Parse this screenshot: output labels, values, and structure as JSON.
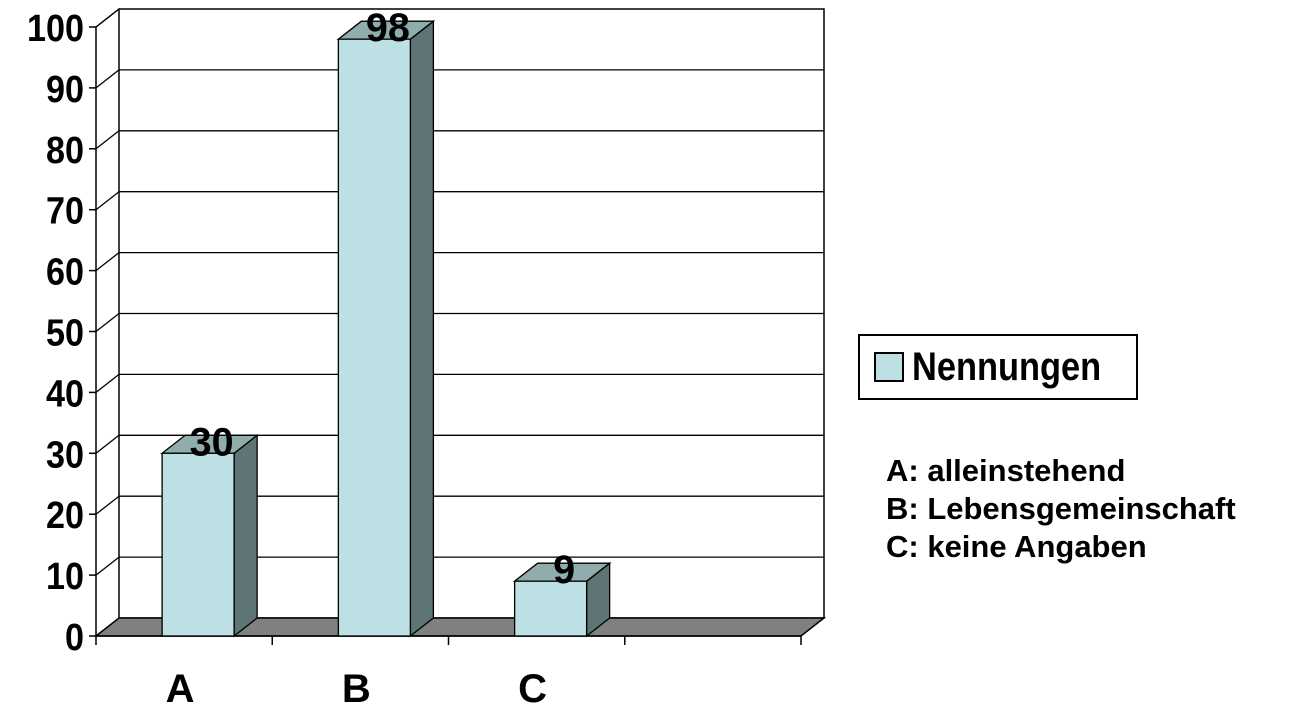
{
  "chart_data": {
    "type": "bar",
    "categories": [
      "A",
      "B",
      "C",
      ""
    ],
    "series": [
      {
        "name": "Nennungen",
        "values": [
          30,
          98,
          9,
          null
        ]
      }
    ],
    "data_labels": [
      "30",
      "98",
      "9",
      ""
    ],
    "yticks": [
      "0",
      "10",
      "20",
      "30",
      "40",
      "50",
      "60",
      "70",
      "80",
      "90",
      "100"
    ],
    "ylim": [
      0,
      100
    ],
    "title": "",
    "xlabel": "",
    "ylabel": "",
    "grid": true,
    "three_d": true,
    "legend_position": "right",
    "annotations": [
      "A: alleinstehend",
      "B: Lebensgemeinschaft",
      "C: keine Angaben"
    ]
  },
  "colors": {
    "bar_front": "#bce0e4",
    "bar_side": "#5f7474",
    "bar_top": "#8fadad",
    "floor": "#808080",
    "grid": "#000000"
  }
}
